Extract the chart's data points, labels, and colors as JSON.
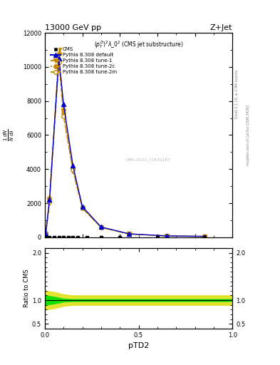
{
  "title_top": "13000 GeV pp",
  "title_right": "Z+Jet",
  "subtitle": "$(p_T^D)^2\\lambda\\_0^2$ (CMS jet substructure)",
  "watermark": "mcplots.cern.ch [arXiv:1306.3436]",
  "rivet_version": "Rivet 3.1.10, ≥ 2.9M events",
  "stamp": "CMS-2021_I1920187",
  "xlabel": "pTD2",
  "ylabel_ratio": "Ratio to CMS",
  "xlim": [
    0,
    1
  ],
  "ylim_main": [
    0,
    12000
  ],
  "ylim_ratio": [
    0.4,
    2.1
  ],
  "cms_x": [
    0.005,
    0.025,
    0.05,
    0.075,
    0.1,
    0.125,
    0.15,
    0.175,
    0.225,
    0.3,
    0.4,
    0.6,
    0.85
  ],
  "cms_y": [
    5,
    5,
    5,
    5,
    5,
    5,
    5,
    5,
    5,
    5,
    5,
    5,
    5
  ],
  "pythia_default_x": [
    0.005,
    0.025,
    0.075,
    0.1,
    0.15,
    0.2,
    0.3,
    0.45,
    0.65,
    0.85
  ],
  "pythia_default_y": [
    200,
    2200,
    10500,
    7800,
    4200,
    1800,
    600,
    200,
    80,
    50
  ],
  "tune1_x": [
    0.005,
    0.025,
    0.075,
    0.1,
    0.15,
    0.2,
    0.3,
    0.45,
    0.65,
    0.85
  ],
  "tune1_y": [
    180,
    2000,
    11000,
    7200,
    3900,
    1700,
    580,
    190,
    75,
    48
  ],
  "tune2c_x": [
    0.005,
    0.025,
    0.075,
    0.1,
    0.15,
    0.2,
    0.3,
    0.45,
    0.65,
    0.85
  ],
  "tune2c_y": [
    210,
    2300,
    10800,
    7500,
    4050,
    1750,
    590,
    195,
    78,
    50
  ],
  "tune2m_x": [
    0.005,
    0.025,
    0.075,
    0.1,
    0.15,
    0.2,
    0.3,
    0.45,
    0.65,
    0.85
  ],
  "tune2m_y": [
    190,
    2100,
    10300,
    7100,
    3950,
    1720,
    570,
    185,
    76,
    49
  ],
  "color_default": "#0000cc",
  "color_tune1": "#cc8800",
  "color_tune2c": "#cc8800",
  "color_tune2m": "#cc8800",
  "ratio_green_color": "#00dd00",
  "ratio_yellow_color": "#dddd00",
  "cms_marker_color": "#000000",
  "ratio_band_x": [
    0.0,
    0.05,
    0.1,
    0.15,
    0.2,
    0.3,
    0.5,
    1.0
  ],
  "ratio_yellow_lo": [
    0.8,
    0.83,
    0.88,
    0.9,
    0.9,
    0.9,
    0.9,
    0.9
  ],
  "ratio_yellow_hi": [
    1.2,
    1.17,
    1.12,
    1.1,
    1.1,
    1.1,
    1.1,
    1.1
  ],
  "ratio_green_lo": [
    0.9,
    0.93,
    0.97,
    0.98,
    0.98,
    0.98,
    0.98,
    0.98
  ],
  "ratio_green_hi": [
    1.1,
    1.07,
    1.03,
    1.02,
    1.02,
    1.02,
    1.02,
    1.02
  ]
}
